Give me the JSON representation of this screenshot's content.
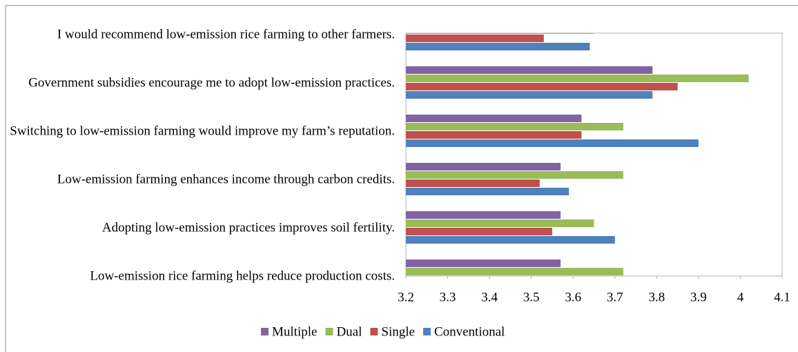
{
  "chart_data": {
    "type": "bar",
    "orientation": "horizontal",
    "categories": [
      "I would recommend low-emission rice farming to other farmers.",
      "Government subsidies encourage me to adopt low-emission practices.",
      "Switching to low-emission farming would improve my farm’s reputation.",
      "Low-emission farming enhances income through carbon credits.",
      "Adopting low-emission practices improves soil fertility.",
      "Low-emission rice farming helps reduce production costs."
    ],
    "series": [
      {
        "name": "Multiple",
        "color": "#8064a2",
        "values": [
          null,
          3.79,
          3.62,
          3.57,
          3.57,
          3.57
        ]
      },
      {
        "name": "Dual",
        "color": "#9bbb59",
        "values": [
          3.65,
          4.02,
          3.72,
          3.72,
          3.65,
          3.72
        ]
      },
      {
        "name": "Single",
        "color": "#c0504d",
        "values": [
          3.53,
          3.85,
          3.62,
          3.52,
          3.55,
          null
        ]
      },
      {
        "name": "Conventional",
        "color": "#4f81bd",
        "values": [
          3.64,
          3.79,
          3.9,
          3.59,
          3.7,
          null
        ]
      }
    ],
    "xlim": [
      3.2,
      4.1
    ],
    "xticks": [
      3.2,
      3.3,
      3.4,
      3.5,
      3.6,
      3.7,
      3.8,
      3.9,
      4,
      4.1
    ],
    "legend": "bottom"
  }
}
